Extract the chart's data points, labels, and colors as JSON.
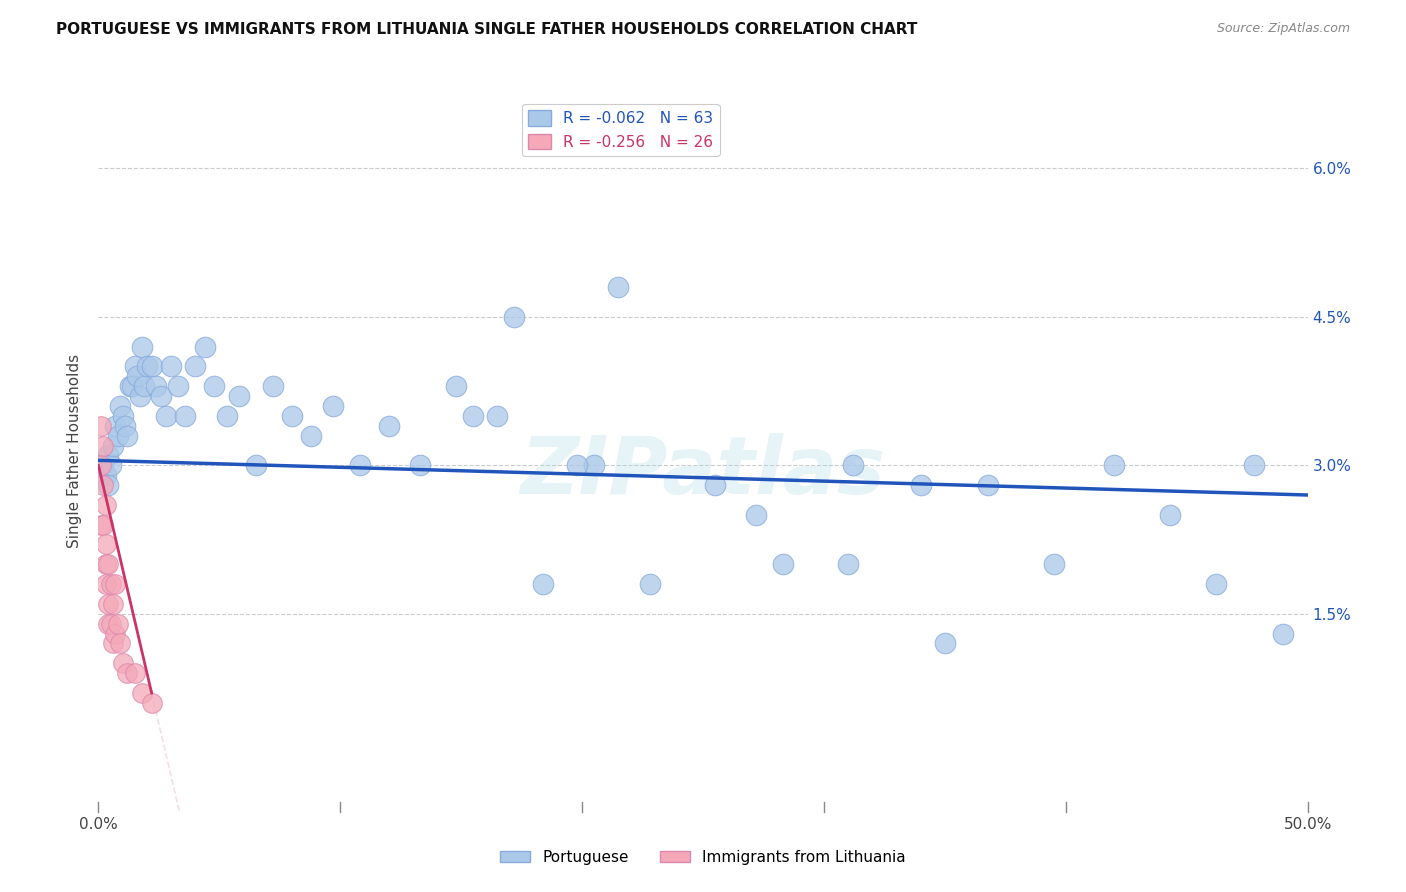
{
  "title": "PORTUGUESE VS IMMIGRANTS FROM LITHUANIA SINGLE FATHER HOUSEHOLDS CORRELATION CHART",
  "source": "Source: ZipAtlas.com",
  "ylabel": "Single Father Households",
  "xlim": [
    0,
    0.5
  ],
  "ylim": [
    -0.005,
    0.068
  ],
  "yticks": [
    0.0,
    0.015,
    0.03,
    0.045,
    0.06
  ],
  "ytick_labels_right": [
    "",
    "1.5%",
    "3.0%",
    "4.5%",
    "6.0%"
  ],
  "xticks": [
    0,
    0.1,
    0.2,
    0.3,
    0.4,
    0.5
  ],
  "xtick_labels": [
    "0.0%",
    "",
    "",
    "",
    "",
    "50.0%"
  ],
  "portuguese_R": -0.062,
  "portuguese_N": 63,
  "lithuania_R": -0.256,
  "lithuania_N": 26,
  "portuguese_color": "#aac8e8",
  "lithuania_color": "#f4a8b8",
  "portuguese_line_color": "#2255bb",
  "lithuania_line_color": "#cc3366",
  "watermark": "ZIPatlas",
  "portuguese_x": [
    0.002,
    0.003,
    0.004,
    0.004,
    0.005,
    0.006,
    0.007,
    0.008,
    0.009,
    0.01,
    0.011,
    0.012,
    0.013,
    0.014,
    0.015,
    0.016,
    0.017,
    0.018,
    0.019,
    0.02,
    0.022,
    0.024,
    0.026,
    0.028,
    0.03,
    0.033,
    0.036,
    0.04,
    0.044,
    0.048,
    0.053,
    0.058,
    0.065,
    0.072,
    0.08,
    0.088,
    0.097,
    0.108,
    0.12,
    0.133,
    0.148,
    0.165,
    0.184,
    0.205,
    0.228,
    0.255,
    0.283,
    0.312,
    0.34,
    0.368,
    0.395,
    0.42,
    0.443,
    0.462,
    0.478,
    0.49,
    0.198,
    0.155,
    0.272,
    0.31,
    0.35,
    0.172,
    0.215
  ],
  "portuguese_y": [
    0.03,
    0.029,
    0.031,
    0.028,
    0.03,
    0.032,
    0.034,
    0.033,
    0.036,
    0.035,
    0.034,
    0.033,
    0.038,
    0.038,
    0.04,
    0.039,
    0.037,
    0.042,
    0.038,
    0.04,
    0.04,
    0.038,
    0.037,
    0.035,
    0.04,
    0.038,
    0.035,
    0.04,
    0.042,
    0.038,
    0.035,
    0.037,
    0.03,
    0.038,
    0.035,
    0.033,
    0.036,
    0.03,
    0.034,
    0.03,
    0.038,
    0.035,
    0.018,
    0.03,
    0.018,
    0.028,
    0.02,
    0.03,
    0.028,
    0.028,
    0.02,
    0.03,
    0.025,
    0.018,
    0.03,
    0.013,
    0.03,
    0.035,
    0.025,
    0.02,
    0.012,
    0.045,
    0.048
  ],
  "lithuania_x": [
    0.001,
    0.001,
    0.001,
    0.002,
    0.002,
    0.002,
    0.003,
    0.003,
    0.003,
    0.003,
    0.004,
    0.004,
    0.004,
    0.005,
    0.005,
    0.006,
    0.006,
    0.007,
    0.007,
    0.008,
    0.009,
    0.01,
    0.012,
    0.015,
    0.018,
    0.022
  ],
  "lithuania_y": [
    0.034,
    0.03,
    0.024,
    0.032,
    0.028,
    0.024,
    0.026,
    0.022,
    0.02,
    0.018,
    0.02,
    0.016,
    0.014,
    0.018,
    0.014,
    0.016,
    0.012,
    0.018,
    0.013,
    0.014,
    0.012,
    0.01,
    0.009,
    0.009,
    0.007,
    0.006
  ],
  "port_line_x0": 0.0,
  "port_line_y0": 0.0305,
  "port_line_x1": 0.5,
  "port_line_y1": 0.027,
  "lith_line_x0": 0.0,
  "lith_line_y0": 0.03,
  "lith_line_x1": 0.022,
  "lith_line_y1": 0.007
}
